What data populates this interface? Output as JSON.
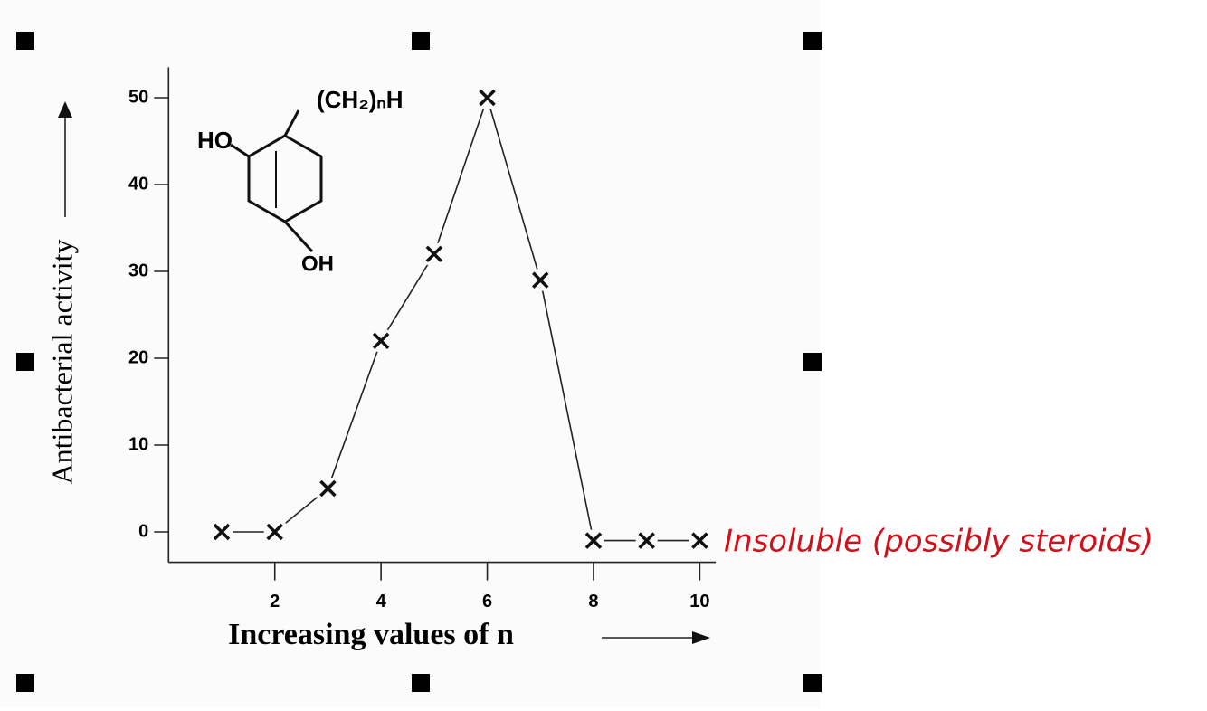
{
  "chart_data": {
    "type": "line",
    "y_label": "Antibacterial activity",
    "x_label": "Increasing values of n",
    "annotation": "Insoluble (possibly steroids)",
    "x": [
      1,
      2,
      3,
      4,
      5,
      6,
      7,
      8,
      9,
      10
    ],
    "values": [
      0,
      0,
      5,
      22,
      32,
      50,
      29,
      -1,
      -1,
      -1
    ],
    "color": "#222222",
    "xlim": [
      0,
      10.3
    ],
    "ylim": [
      -3.5,
      53.5
    ],
    "xticks": [
      2,
      4,
      6,
      8,
      10
    ],
    "yticks": [
      0,
      10,
      20,
      30,
      40,
      50
    ]
  },
  "structure": {
    "substituent": "(CH₂)ₙH",
    "hydroxyl_top": "HO",
    "hydroxyl_bottom": "OH"
  }
}
